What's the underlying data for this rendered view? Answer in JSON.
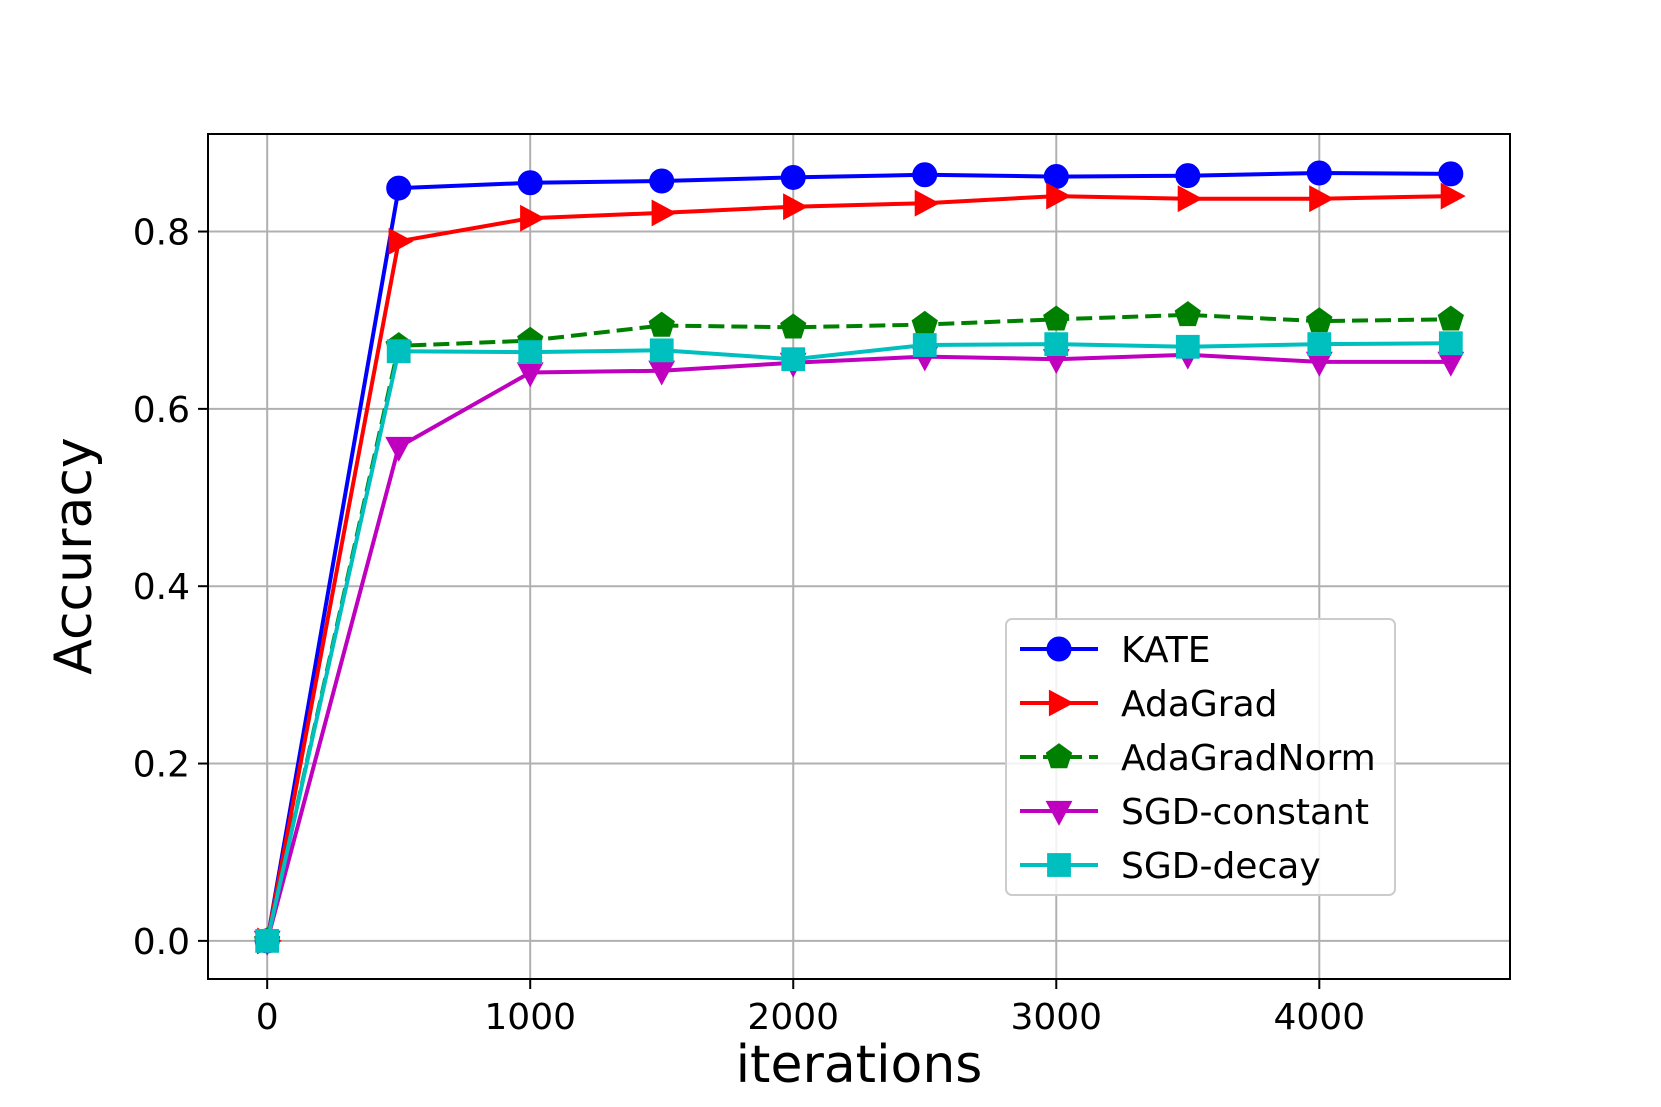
{
  "chart_data": {
    "type": "line",
    "title": "",
    "xlabel": "iterations",
    "ylabel": "Accuracy",
    "xlim": [
      -225,
      4725
    ],
    "ylim": [
      -0.043,
      0.91
    ],
    "grid": true,
    "legend_position": "lower-right",
    "x": [
      0,
      500,
      1000,
      1500,
      2000,
      2500,
      3000,
      3500,
      4000,
      4500
    ],
    "xticks": [
      0,
      1000,
      2000,
      3000,
      4000
    ],
    "xtick_labels": [
      "0",
      "1000",
      "2000",
      "3000",
      "4000"
    ],
    "yticks": [
      0.0,
      0.2,
      0.4,
      0.6,
      0.8
    ],
    "ytick_labels": [
      "0.0",
      "0.2",
      "0.4",
      "0.6",
      "0.8"
    ],
    "series": [
      {
        "name": "KATE",
        "color": "#0000ff",
        "marker": "circle",
        "linestyle": "solid",
        "values": [
          0.0,
          0.849,
          0.855,
          0.857,
          0.861,
          0.864,
          0.862,
          0.863,
          0.866,
          0.865
        ]
      },
      {
        "name": "AdaGrad",
        "color": "#ff0000",
        "marker": "triangle-right",
        "linestyle": "solid",
        "values": [
          0.0,
          0.789,
          0.815,
          0.821,
          0.828,
          0.832,
          0.84,
          0.837,
          0.837,
          0.84
        ]
      },
      {
        "name": "AdaGradNorm",
        "color": "#008000",
        "marker": "pentagon",
        "linestyle": "dashed",
        "values": [
          0.0,
          0.671,
          0.677,
          0.694,
          0.692,
          0.695,
          0.701,
          0.706,
          0.699,
          0.701
        ]
      },
      {
        "name": "SGD-constant",
        "color": "#bf00bf",
        "marker": "triangle-down",
        "linestyle": "solid",
        "values": [
          0.0,
          0.557,
          0.641,
          0.643,
          0.652,
          0.659,
          0.656,
          0.661,
          0.653,
          0.653
        ]
      },
      {
        "name": "SGD-decay",
        "color": "#00bfbf",
        "marker": "square",
        "linestyle": "solid",
        "values": [
          0.0,
          0.665,
          0.664,
          0.666,
          0.656,
          0.672,
          0.673,
          0.67,
          0.673,
          0.674
        ]
      }
    ]
  }
}
